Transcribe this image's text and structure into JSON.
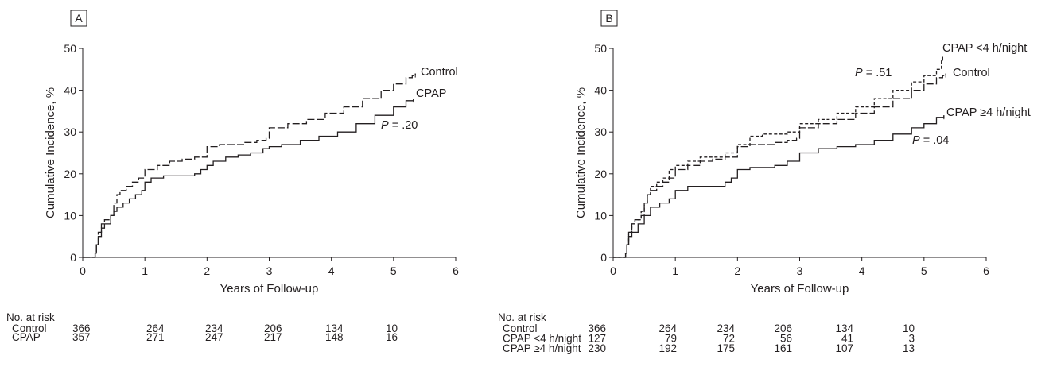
{
  "panels": [
    {
      "label": "A",
      "chart_data": {
        "type": "line",
        "title": "",
        "xlabel": "Years of Follow-up",
        "ylabel": "Cumulative Incidence, %",
        "xlim": [
          0,
          6
        ],
        "ylim": [
          0,
          50
        ],
        "xticks": [
          "0",
          "1",
          "2",
          "3",
          "4",
          "5",
          "6"
        ],
        "yticks": [
          "0",
          "10",
          "20",
          "30",
          "40",
          "50"
        ],
        "grid": false,
        "legend": "inline labels at curve ends",
        "annotations": [
          {
            "text": "P = .20",
            "x": 4.9,
            "y": 31
          }
        ],
        "series": [
          {
            "name": "Control",
            "style": "long-dash",
            "points": [
              [
                0,
                0
              ],
              [
                0.18,
                0
              ],
              [
                0.2,
                1
              ],
              [
                0.22,
                3
              ],
              [
                0.25,
                6
              ],
              [
                0.3,
                8
              ],
              [
                0.35,
                9
              ],
              [
                0.45,
                10
              ],
              [
                0.5,
                13
              ],
              [
                0.55,
                15
              ],
              [
                0.6,
                16
              ],
              [
                0.7,
                17
              ],
              [
                0.8,
                18
              ],
              [
                0.9,
                19
              ],
              [
                1.0,
                21
              ],
              [
                1.2,
                22
              ],
              [
                1.4,
                23
              ],
              [
                1.6,
                23.5
              ],
              [
                1.8,
                24
              ],
              [
                2.0,
                26.5
              ],
              [
                2.2,
                27
              ],
              [
                2.4,
                27
              ],
              [
                2.6,
                27.5
              ],
              [
                2.8,
                28
              ],
              [
                2.95,
                28.5
              ],
              [
                3.0,
                31
              ],
              [
                3.3,
                32
              ],
              [
                3.6,
                33
              ],
              [
                3.9,
                34.5
              ],
              [
                4.2,
                36
              ],
              [
                4.5,
                38
              ],
              [
                4.8,
                40
              ],
              [
                5.0,
                41.5
              ],
              [
                5.2,
                43
              ],
              [
                5.3,
                43.5
              ],
              [
                5.35,
                44
              ]
            ]
          },
          {
            "name": "CPAP",
            "style": "solid",
            "points": [
              [
                0,
                0
              ],
              [
                0.18,
                0
              ],
              [
                0.2,
                1
              ],
              [
                0.22,
                3
              ],
              [
                0.25,
                5
              ],
              [
                0.3,
                7
              ],
              [
                0.35,
                8
              ],
              [
                0.45,
                10
              ],
              [
                0.5,
                11
              ],
              [
                0.55,
                12
              ],
              [
                0.65,
                13
              ],
              [
                0.75,
                14
              ],
              [
                0.85,
                15
              ],
              [
                0.95,
                16
              ],
              [
                1.0,
                18
              ],
              [
                1.1,
                19
              ],
              [
                1.3,
                19.5
              ],
              [
                1.5,
                19.5
              ],
              [
                1.7,
                19.5
              ],
              [
                1.8,
                20
              ],
              [
                1.9,
                21
              ],
              [
                2.0,
                22
              ],
              [
                2.1,
                23
              ],
              [
                2.3,
                24
              ],
              [
                2.5,
                24.5
              ],
              [
                2.7,
                25
              ],
              [
                2.9,
                26
              ],
              [
                3.0,
                26.5
              ],
              [
                3.2,
                27
              ],
              [
                3.5,
                28
              ],
              [
                3.8,
                29
              ],
              [
                4.1,
                30
              ],
              [
                4.4,
                32
              ],
              [
                4.7,
                34
              ],
              [
                5.0,
                36
              ],
              [
                5.2,
                37.5
              ],
              [
                5.32,
                38
              ]
            ]
          }
        ]
      },
      "risk_table": {
        "title": "No. at risk",
        "rows": [
          {
            "label": "Control",
            "values": [
              "366",
              "264",
              "234",
              "206",
              "134",
              "10"
            ]
          },
          {
            "label": "CPAP",
            "values": [
              "357",
              "271",
              "247",
              "217",
              "148",
              "16"
            ]
          }
        ]
      }
    },
    {
      "label": "B",
      "chart_data": {
        "type": "line",
        "title": "",
        "xlabel": "Years of Follow-up",
        "ylabel": "Cumulative Incidence, %",
        "xlim": [
          0,
          6
        ],
        "ylim": [
          0,
          50
        ],
        "xticks": [
          "0",
          "1",
          "2",
          "3",
          "4",
          "5",
          "6"
        ],
        "yticks": [
          "0",
          "10",
          "20",
          "30",
          "40",
          "50"
        ],
        "grid": false,
        "legend": "inline labels at curve ends",
        "annotations": [
          {
            "text": "P = .51",
            "x": 4.1,
            "y": 45
          },
          {
            "text": "P = .04",
            "x": 4.8,
            "y": 28
          }
        ],
        "series": [
          {
            "name": "CPAP <4 h/night",
            "style": "short-dash",
            "points": [
              [
                0,
                0
              ],
              [
                0.18,
                0
              ],
              [
                0.2,
                1
              ],
              [
                0.22,
                3
              ],
              [
                0.25,
                6
              ],
              [
                0.3,
                8
              ],
              [
                0.35,
                9
              ],
              [
                0.45,
                11
              ],
              [
                0.5,
                13
              ],
              [
                0.55,
                15
              ],
              [
                0.6,
                17
              ],
              [
                0.7,
                18
              ],
              [
                0.8,
                19
              ],
              [
                0.9,
                21
              ],
              [
                1.0,
                22
              ],
              [
                1.2,
                23
              ],
              [
                1.4,
                24
              ],
              [
                1.6,
                24
              ],
              [
                1.8,
                25
              ],
              [
                2.0,
                27
              ],
              [
                2.2,
                29
              ],
              [
                2.4,
                29.5
              ],
              [
                2.6,
                29.5
              ],
              [
                2.8,
                30
              ],
              [
                3.0,
                32
              ],
              [
                3.3,
                33
              ],
              [
                3.6,
                34.5
              ],
              [
                3.9,
                36
              ],
              [
                4.2,
                38
              ],
              [
                4.5,
                40
              ],
              [
                4.8,
                42
              ],
              [
                5.0,
                43.5
              ],
              [
                5.2,
                45
              ],
              [
                5.28,
                47
              ],
              [
                5.3,
                48
              ]
            ]
          },
          {
            "name": "Control",
            "style": "long-dash",
            "points": [
              [
                0,
                0
              ],
              [
                0.18,
                0
              ],
              [
                0.2,
                1
              ],
              [
                0.22,
                3
              ],
              [
                0.25,
                6
              ],
              [
                0.3,
                8
              ],
              [
                0.35,
                9
              ],
              [
                0.45,
                10
              ],
              [
                0.5,
                13
              ],
              [
                0.55,
                15
              ],
              [
                0.6,
                16
              ],
              [
                0.7,
                17
              ],
              [
                0.8,
                18
              ],
              [
                0.9,
                19
              ],
              [
                1.0,
                21
              ],
              [
                1.2,
                22
              ],
              [
                1.4,
                23
              ],
              [
                1.6,
                23.5
              ],
              [
                1.8,
                24
              ],
              [
                2.0,
                26.5
              ],
              [
                2.2,
                27
              ],
              [
                2.4,
                27
              ],
              [
                2.6,
                27.5
              ],
              [
                2.8,
                28
              ],
              [
                2.95,
                28.5
              ],
              [
                3.0,
                31
              ],
              [
                3.3,
                32
              ],
              [
                3.6,
                33
              ],
              [
                3.9,
                34.5
              ],
              [
                4.2,
                36
              ],
              [
                4.5,
                38
              ],
              [
                4.8,
                40
              ],
              [
                5.0,
                41.5
              ],
              [
                5.2,
                43
              ],
              [
                5.3,
                43.5
              ],
              [
                5.35,
                44
              ]
            ]
          },
          {
            "name": "CPAP ≥4 h/night",
            "style": "solid",
            "points": [
              [
                0,
                0
              ],
              [
                0.18,
                0
              ],
              [
                0.2,
                1
              ],
              [
                0.22,
                3
              ],
              [
                0.25,
                5
              ],
              [
                0.3,
                6
              ],
              [
                0.4,
                8
              ],
              [
                0.5,
                10
              ],
              [
                0.6,
                12
              ],
              [
                0.75,
                13
              ],
              [
                0.9,
                14
              ],
              [
                1.0,
                16
              ],
              [
                1.2,
                17
              ],
              [
                1.4,
                17
              ],
              [
                1.6,
                17
              ],
              [
                1.8,
                18
              ],
              [
                1.9,
                19
              ],
              [
                2.0,
                21
              ],
              [
                2.2,
                21.5
              ],
              [
                2.4,
                21.5
              ],
              [
                2.6,
                22
              ],
              [
                2.8,
                23
              ],
              [
                3.0,
                25
              ],
              [
                3.3,
                26
              ],
              [
                3.6,
                26.5
              ],
              [
                3.9,
                27
              ],
              [
                4.2,
                28
              ],
              [
                4.5,
                29.5
              ],
              [
                4.8,
                31
              ],
              [
                5.0,
                32
              ],
              [
                5.2,
                33.5
              ],
              [
                5.32,
                34
              ]
            ]
          }
        ]
      },
      "risk_table": {
        "title": "No. at risk",
        "rows": [
          {
            "label": "Control",
            "values": [
              "366",
              "264",
              "234",
              "206",
              "134",
              "10"
            ]
          },
          {
            "label": "CPAP <4 h/night",
            "values": [
              "127",
              "79",
              "72",
              "56",
              "41",
              "3"
            ]
          },
          {
            "label": "CPAP ≥4 h/night",
            "values": [
              "230",
              "192",
              "175",
              "161",
              "107",
              "13"
            ]
          }
        ]
      }
    }
  ]
}
